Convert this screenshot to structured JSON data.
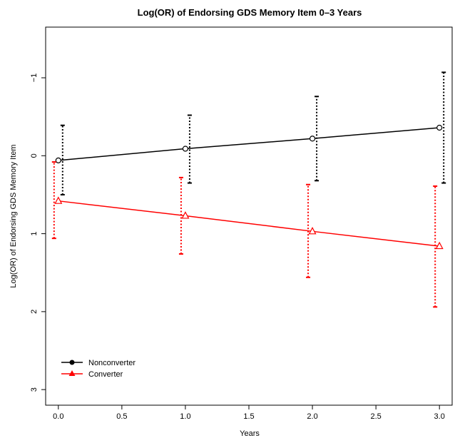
{
  "chart_data": {
    "type": "line",
    "title": "Log(OR) of Endorsing GDS Memory Item 0–3 Years",
    "xlabel": "Years",
    "ylabel": "Log(OR) of Endorsing GDS Memory Item",
    "xlim": [
      -0.1,
      3.1
    ],
    "ylim": [
      3.2,
      -1.65
    ],
    "y_reversed": true,
    "x_ticks": [
      0.0,
      0.5,
      1.0,
      1.5,
      2.0,
      2.5,
      3.0
    ],
    "x_tick_labels": [
      "0.0",
      "0.5",
      "1.0",
      "1.5",
      "2.0",
      "2.5",
      "3.0"
    ],
    "y_ticks": [
      -1,
      0,
      1,
      2,
      3
    ],
    "y_tick_labels": [
      "−1",
      "0",
      "1",
      "2",
      "3"
    ],
    "legend_position": "bottom-left",
    "series": [
      {
        "name": "Nonconverter",
        "color": "#000000",
        "marker": "circle",
        "x": [
          0,
          1,
          2,
          3
        ],
        "y": [
          0.06,
          -0.09,
          -0.22,
          -0.36
        ],
        "error_lower": [
          0.5,
          0.35,
          0.32,
          0.35
        ],
        "error_upper": [
          -0.39,
          -0.52,
          -0.76,
          -1.07
        ]
      },
      {
        "name": "Converter",
        "color": "#ff0000",
        "marker": "triangle",
        "x": [
          0,
          1,
          2,
          3
        ],
        "y": [
          0.58,
          0.77,
          0.97,
          1.16
        ],
        "error_lower": [
          1.06,
          1.26,
          1.56,
          1.94
        ],
        "error_upper": [
          0.08,
          0.28,
          0.37,
          0.39
        ]
      }
    ]
  }
}
